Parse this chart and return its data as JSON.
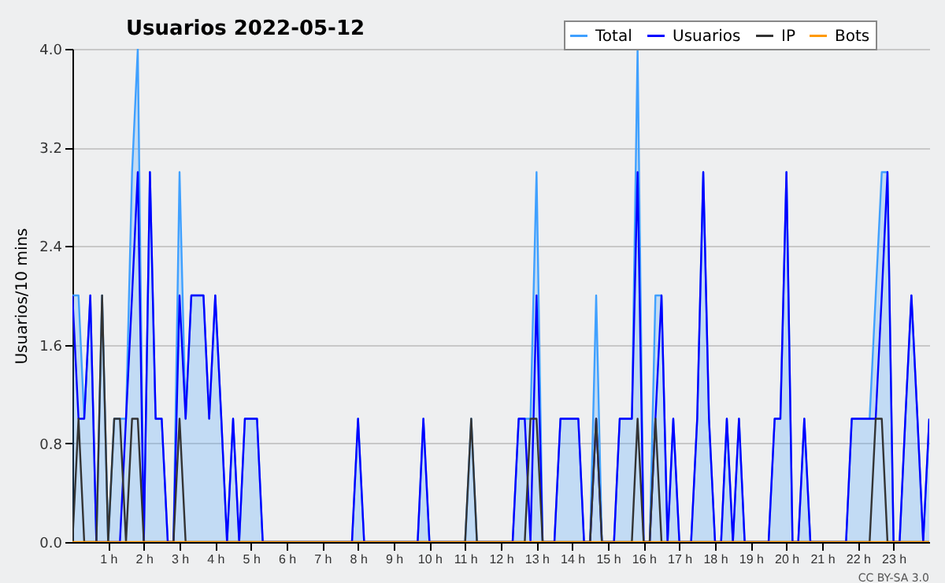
{
  "chart_data": {
    "type": "line",
    "title": "Usuarios  2022-05-12",
    "ylabel": "Usuarios/10 mins",
    "annotations": [
      "CC BY-SA 3.0"
    ],
    "x": [
      0,
      0.17,
      0.33,
      0.5,
      0.67,
      0.83,
      1,
      1.17,
      1.33,
      1.5,
      1.67,
      1.83,
      2,
      2.17,
      2.33,
      2.5,
      2.67,
      2.83,
      3,
      3.17,
      3.33,
      3.5,
      3.67,
      3.83,
      4,
      4.17,
      4.33,
      4.5,
      4.67,
      4.83,
      5,
      5.17,
      5.33,
      5.5,
      5.67,
      5.83,
      6,
      6.17,
      6.33,
      6.5,
      6.67,
      6.83,
      7,
      7.17,
      7.33,
      7.5,
      7.67,
      7.83,
      8,
      8.17,
      8.33,
      8.5,
      8.67,
      8.83,
      9,
      9.17,
      9.33,
      9.5,
      9.67,
      9.83,
      10,
      10.17,
      10.33,
      10.5,
      10.67,
      10.83,
      11,
      11.17,
      11.33,
      11.5,
      11.67,
      11.83,
      12,
      12.17,
      12.33,
      12.5,
      12.67,
      12.83,
      13,
      13.17,
      13.33,
      13.5,
      13.67,
      13.83,
      14,
      14.17,
      14.33,
      14.5,
      14.67,
      14.83,
      15,
      15.17,
      15.33,
      15.5,
      15.67,
      15.83,
      16,
      16.17,
      16.33,
      16.5,
      16.67,
      16.83,
      17,
      17.17,
      17.33,
      17.5,
      17.67,
      17.83,
      18,
      18.17,
      18.33,
      18.5,
      18.67,
      18.83,
      19,
      19.17,
      19.33,
      19.5,
      19.67,
      19.83,
      20,
      20.17,
      20.33,
      20.5,
      20.67,
      20.83,
      21,
      21.17,
      21.33,
      21.5,
      21.67,
      21.83,
      22,
      22.17,
      22.33,
      22.5,
      22.67,
      22.83,
      23,
      23.17,
      23.33,
      23.5,
      23.67,
      23.83,
      24
    ],
    "series": [
      {
        "name": "Total",
        "type": "area",
        "color": "#3fa0ff",
        "values": [
          2,
          2,
          1,
          2,
          0,
          2,
          0,
          1,
          1,
          1,
          3,
          4,
          0,
          3,
          1,
          1,
          0,
          0,
          3,
          1,
          2,
          2,
          2,
          1,
          2,
          1,
          0,
          1,
          0,
          1,
          1,
          1,
          0,
          0,
          0,
          0,
          0,
          0,
          0,
          0,
          0,
          0,
          0,
          0,
          0,
          0,
          0,
          0,
          1,
          0,
          0,
          0,
          0,
          0,
          0,
          0,
          0,
          0,
          0,
          1,
          0,
          0,
          0,
          0,
          0,
          0,
          0,
          1,
          0,
          0,
          0,
          0,
          0,
          0,
          0,
          1,
          1,
          1,
          3,
          0,
          0,
          0,
          1,
          1,
          1,
          1,
          0,
          0,
          2,
          0,
          0,
          0,
          1,
          1,
          1,
          4,
          0,
          0,
          2,
          2,
          0,
          1,
          0,
          0,
          0,
          1,
          3,
          1,
          0,
          0,
          1,
          0,
          1,
          0,
          0,
          0,
          0,
          0,
          1,
          1,
          3,
          0,
          0,
          1,
          0,
          0,
          0,
          0,
          0,
          0,
          0,
          1,
          1,
          1,
          1,
          2,
          3,
          3,
          0,
          0,
          1,
          2,
          1,
          0,
          1
        ]
      },
      {
        "name": "Usuarios",
        "color": "#0000ff",
        "values": [
          2,
          1,
          1,
          2,
          0,
          0,
          0,
          0,
          0,
          1,
          2,
          3,
          0,
          3,
          1,
          1,
          0,
          0,
          2,
          1,
          2,
          2,
          2,
          1,
          2,
          1,
          0,
          1,
          0,
          1,
          1,
          1,
          0,
          0,
          0,
          0,
          0,
          0,
          0,
          0,
          0,
          0,
          0,
          0,
          0,
          0,
          0,
          0,
          1,
          0,
          0,
          0,
          0,
          0,
          0,
          0,
          0,
          0,
          0,
          1,
          0,
          0,
          0,
          0,
          0,
          0,
          0,
          0,
          0,
          0,
          0,
          0,
          0,
          0,
          0,
          1,
          1,
          0,
          2,
          0,
          0,
          0,
          1,
          1,
          1,
          1,
          0,
          0,
          1,
          0,
          0,
          0,
          1,
          1,
          1,
          3,
          0,
          0,
          1,
          2,
          0,
          1,
          0,
          0,
          0,
          1,
          3,
          1,
          0,
          0,
          1,
          0,
          1,
          0,
          0,
          0,
          0,
          0,
          1,
          1,
          3,
          0,
          0,
          1,
          0,
          0,
          0,
          0,
          0,
          0,
          0,
          1,
          1,
          1,
          1,
          1,
          2,
          3,
          0,
          0,
          1,
          2,
          1,
          0,
          1
        ]
      },
      {
        "name": "IP",
        "color": "#333333",
        "values": [
          0,
          1,
          0,
          0,
          0,
          2,
          0,
          1,
          1,
          0,
          1,
          1,
          0,
          0,
          0,
          0,
          0,
          0,
          1,
          0,
          0,
          0,
          0,
          0,
          0,
          0,
          0,
          0,
          0,
          0,
          0,
          0,
          0,
          0,
          0,
          0,
          0,
          0,
          0,
          0,
          0,
          0,
          0,
          0,
          0,
          0,
          0,
          0,
          0,
          0,
          0,
          0,
          0,
          0,
          0,
          0,
          0,
          0,
          0,
          0,
          0,
          0,
          0,
          0,
          0,
          0,
          0,
          1,
          0,
          0,
          0,
          0,
          0,
          0,
          0,
          0,
          0,
          1,
          1,
          0,
          0,
          0,
          0,
          0,
          0,
          0,
          0,
          0,
          1,
          0,
          0,
          0,
          0,
          0,
          0,
          1,
          0,
          0,
          1,
          0,
          0,
          0,
          0,
          0,
          0,
          0,
          0,
          0,
          0,
          0,
          0,
          0,
          0,
          0,
          0,
          0,
          0,
          0,
          0,
          0,
          0,
          0,
          0,
          0,
          0,
          0,
          0,
          0,
          0,
          0,
          0,
          0,
          0,
          0,
          0,
          1,
          1,
          0,
          0,
          0,
          0,
          0,
          0,
          0,
          0
        ]
      },
      {
        "name": "Bots",
        "color": "#ff9900",
        "x": [
          0,
          24
        ],
        "values": [
          0,
          0
        ]
      }
    ],
    "xlim": [
      0,
      24
    ],
    "xticks": [
      {
        "value": 1,
        "label": "1 h"
      },
      {
        "value": 2,
        "label": "2 h"
      },
      {
        "value": 3,
        "label": "3 h"
      },
      {
        "value": 4,
        "label": "4 h"
      },
      {
        "value": 5,
        "label": "5 h"
      },
      {
        "value": 6,
        "label": "6 h"
      },
      {
        "value": 7,
        "label": "7 h"
      },
      {
        "value": 8,
        "label": "8 h"
      },
      {
        "value": 9,
        "label": "9 h"
      },
      {
        "value": 10,
        "label": "10 h"
      },
      {
        "value": 11,
        "label": "11 h"
      },
      {
        "value": 12,
        "label": "12 h"
      },
      {
        "value": 13,
        "label": "13 h"
      },
      {
        "value": 14,
        "label": "14 h"
      },
      {
        "value": 15,
        "label": "15 h"
      },
      {
        "value": 16,
        "label": "16 h"
      },
      {
        "value": 17,
        "label": "17 h"
      },
      {
        "value": 18,
        "label": "18 h"
      },
      {
        "value": 19,
        "label": "19 h"
      },
      {
        "value": 20,
        "label": "20 h"
      },
      {
        "value": 21,
        "label": "21 h"
      },
      {
        "value": 22,
        "label": "22 h"
      },
      {
        "value": 23,
        "label": "23 h"
      }
    ],
    "ylim": [
      0,
      4
    ],
    "yticks": [
      {
        "value": 0,
        "label": "0.0"
      },
      0.8,
      1.6,
      2.4,
      3.2,
      {
        "value": 4,
        "label": "4.0"
      }
    ],
    "grid": "y",
    "legend": "top right"
  }
}
